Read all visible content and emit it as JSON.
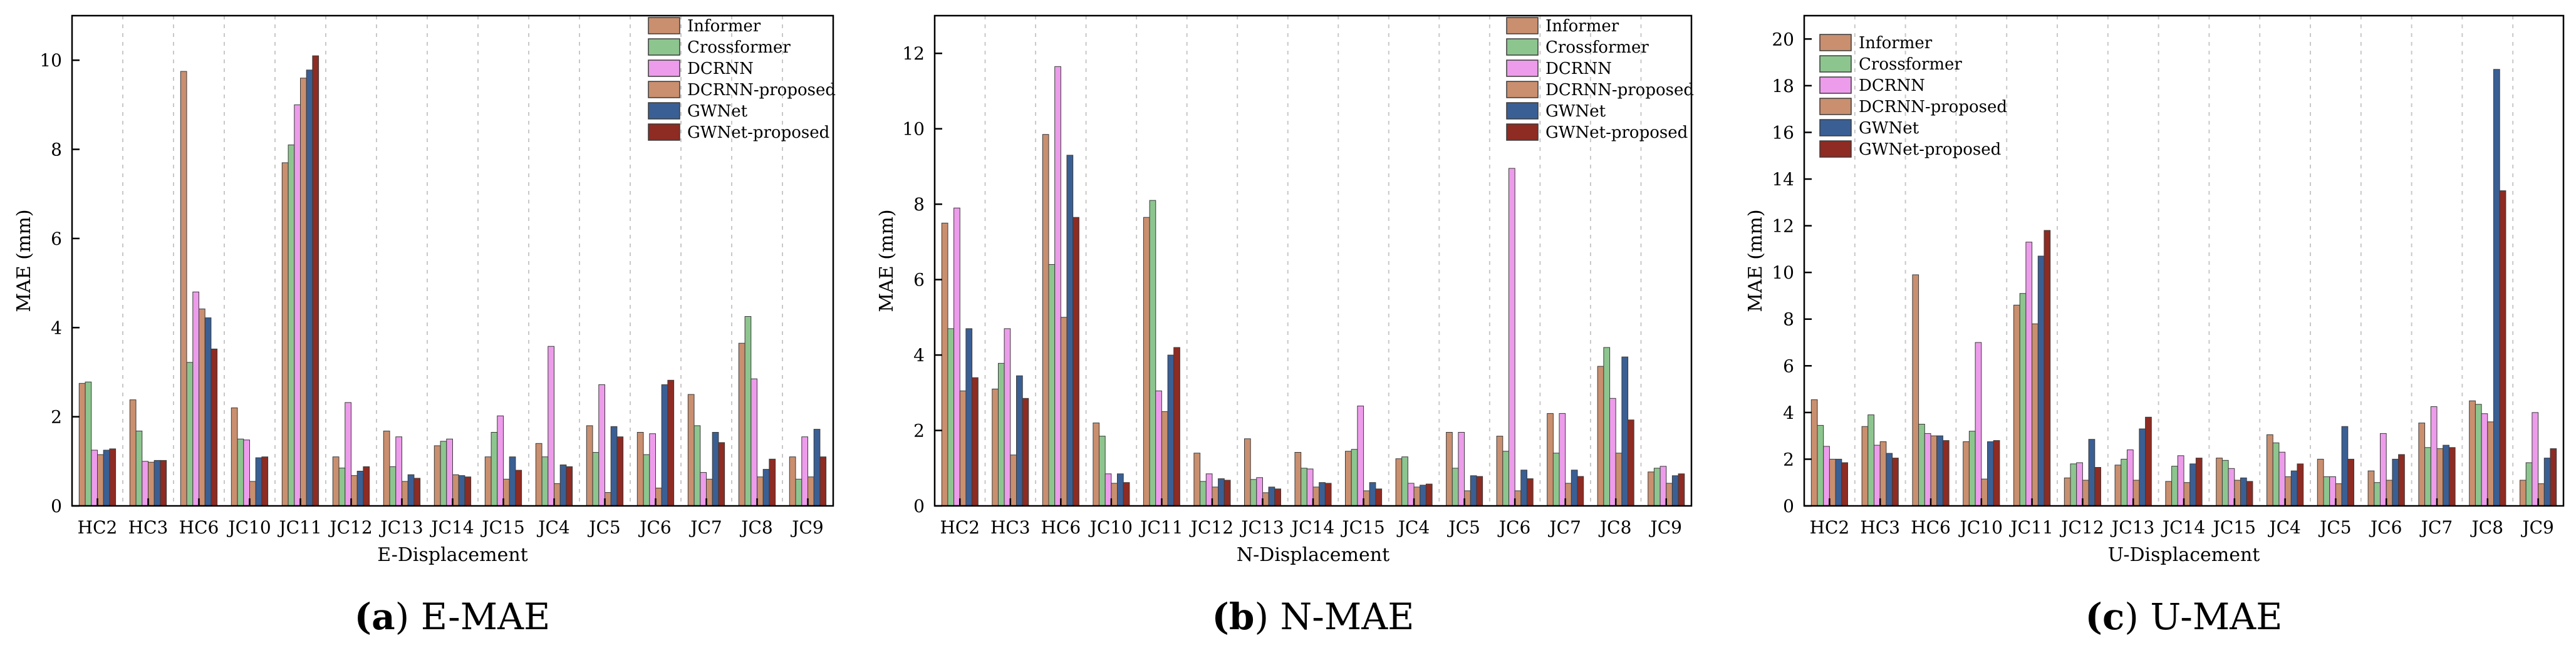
{
  "legend_colors": {
    "Informer": "#C98F6F",
    "Crossformer": "#8DC58F",
    "DCRNN": "#ED9CEB",
    "DCRNN-proposed": "#C98F6F",
    "GWNet": "#3A5F94",
    "GWNet-proposed": "#8E2B22"
  },
  "chart_data": [
    {
      "type": "bar",
      "caption_label": "(a)",
      "caption_text": "E-MAE",
      "xlabel": "E-Displacement",
      "ylabel": "MAE (mm)",
      "ylim": [
        0,
        11
      ],
      "yticks": [
        0,
        2,
        4,
        6,
        8,
        10
      ],
      "grid": "vertical dashed",
      "legend_position": "top-right",
      "categories": [
        "HC2",
        "HC3",
        "HC6",
        "JC10",
        "JC11",
        "JC12",
        "JC13",
        "JC14",
        "JC15",
        "JC4",
        "JC5",
        "JC6",
        "JC7",
        "JC8",
        "JC9"
      ],
      "series": [
        {
          "name": "Informer",
          "values": [
            2.75,
            2.38,
            9.75,
            2.2,
            7.7,
            1.1,
            1.68,
            1.35,
            1.1,
            1.4,
            1.8,
            1.65,
            2.5,
            3.65,
            1.1
          ]
        },
        {
          "name": "Crossformer",
          "values": [
            2.78,
            1.68,
            3.22,
            1.5,
            8.1,
            0.85,
            0.88,
            1.45,
            1.65,
            1.1,
            1.2,
            1.15,
            1.8,
            4.25,
            0.6
          ]
        },
        {
          "name": "DCRNN",
          "values": [
            1.25,
            1.0,
            4.8,
            1.48,
            9.0,
            2.32,
            1.55,
            1.5,
            2.02,
            3.58,
            2.72,
            1.62,
            0.75,
            2.85,
            1.55
          ]
        },
        {
          "name": "DCRNN-proposed",
          "values": [
            1.15,
            0.98,
            4.42,
            0.55,
            9.6,
            0.68,
            0.55,
            0.7,
            0.6,
            0.5,
            0.3,
            0.4,
            0.6,
            0.65,
            0.65
          ]
        },
        {
          "name": "GWNet",
          "values": [
            1.25,
            1.02,
            4.22,
            1.08,
            9.78,
            0.78,
            0.7,
            0.68,
            1.1,
            0.92,
            1.78,
            2.72,
            1.65,
            0.82,
            1.72
          ]
        },
        {
          "name": "GWNet-proposed",
          "values": [
            1.28,
            1.02,
            3.52,
            1.1,
            10.1,
            0.88,
            0.62,
            0.65,
            0.8,
            0.88,
            1.55,
            2.82,
            1.42,
            1.05,
            1.1
          ]
        }
      ]
    },
    {
      "type": "bar",
      "caption_label": "(b)",
      "caption_text": "N-MAE",
      "xlabel": "N-Displacement",
      "ylabel": "MAE (mm)",
      "ylim": [
        0,
        13
      ],
      "yticks": [
        0,
        2,
        4,
        6,
        8,
        10,
        12
      ],
      "grid": "vertical dashed",
      "legend_position": "top-right",
      "categories": [
        "HC2",
        "HC3",
        "HC6",
        "JC10",
        "JC11",
        "JC12",
        "JC13",
        "JC14",
        "JC15",
        "JC4",
        "JC5",
        "JC6",
        "JC7",
        "JC8",
        "JC9"
      ],
      "series": [
        {
          "name": "Informer",
          "values": [
            7.5,
            3.1,
            9.85,
            2.2,
            7.65,
            1.4,
            1.78,
            1.42,
            1.45,
            1.25,
            1.95,
            1.85,
            2.45,
            3.7,
            0.9
          ]
        },
        {
          "name": "Crossformer",
          "values": [
            4.7,
            3.78,
            6.4,
            1.85,
            8.1,
            0.65,
            0.7,
            1.0,
            1.5,
            1.3,
            1.0,
            1.45,
            1.4,
            4.2,
            1.0
          ]
        },
        {
          "name": "DCRNN",
          "values": [
            7.9,
            4.7,
            11.65,
            0.85,
            3.05,
            0.85,
            0.75,
            0.98,
            2.65,
            0.6,
            1.95,
            8.95,
            2.45,
            2.85,
            1.05
          ]
        },
        {
          "name": "DCRNN-proposed",
          "values": [
            3.05,
            1.35,
            5.0,
            0.6,
            2.5,
            0.5,
            0.35,
            0.5,
            0.4,
            0.5,
            0.4,
            0.4,
            0.6,
            1.4,
            0.6
          ]
        },
        {
          "name": "GWNet",
          "values": [
            4.7,
            3.45,
            9.3,
            0.85,
            4.0,
            0.72,
            0.5,
            0.62,
            0.62,
            0.55,
            0.8,
            0.95,
            0.95,
            3.95,
            0.8
          ]
        },
        {
          "name": "GWNet-proposed",
          "values": [
            3.4,
            2.85,
            7.65,
            0.62,
            4.2,
            0.68,
            0.45,
            0.6,
            0.45,
            0.58,
            0.78,
            0.72,
            0.78,
            2.28,
            0.85
          ]
        }
      ]
    },
    {
      "type": "bar",
      "caption_label": "(c)",
      "caption_text": "U-MAE",
      "xlabel": "U-Displacement",
      "ylabel": "MAE (mm)",
      "ylim": [
        0,
        21
      ],
      "yticks": [
        0,
        2,
        4,
        6,
        8,
        10,
        12,
        14,
        16,
        18,
        20
      ],
      "grid": "vertical dashed",
      "legend_position": "top-left",
      "categories": [
        "HC2",
        "HC3",
        "HC6",
        "JC10",
        "JC11",
        "JC12",
        "JC13",
        "JC14",
        "JC15",
        "JC4",
        "JC5",
        "JC6",
        "JC7",
        "JC8",
        "JC9"
      ],
      "series": [
        {
          "name": "Informer",
          "values": [
            4.55,
            3.4,
            9.9,
            2.75,
            8.6,
            1.2,
            1.75,
            1.05,
            2.05,
            3.05,
            2.0,
            1.5,
            3.55,
            4.5,
            1.1
          ]
        },
        {
          "name": "Crossformer",
          "values": [
            3.45,
            3.9,
            3.5,
            3.2,
            9.1,
            1.8,
            2.0,
            1.7,
            1.95,
            2.7,
            1.25,
            1.0,
            2.5,
            4.35,
            1.85
          ]
        },
        {
          "name": "DCRNN",
          "values": [
            2.55,
            2.6,
            3.1,
            7.0,
            11.3,
            1.85,
            2.4,
            2.15,
            1.6,
            2.3,
            1.25,
            3.1,
            4.25,
            3.95,
            4.0
          ]
        },
        {
          "name": "DCRNN-proposed",
          "values": [
            2.0,
            2.75,
            3.0,
            1.15,
            7.8,
            1.1,
            1.1,
            1.0,
            1.1,
            1.25,
            0.95,
            1.1,
            2.45,
            3.6,
            0.95
          ]
        },
        {
          "name": "GWNet",
          "values": [
            2.0,
            2.25,
            3.0,
            2.75,
            10.7,
            2.85,
            3.3,
            1.8,
            1.2,
            1.5,
            3.4,
            2.0,
            2.6,
            18.7,
            2.05
          ]
        },
        {
          "name": "GWNet-proposed",
          "values": [
            1.85,
            2.05,
            2.8,
            2.8,
            11.8,
            1.65,
            3.8,
            2.05,
            1.05,
            1.8,
            2.0,
            2.2,
            2.5,
            13.5,
            2.45
          ]
        }
      ]
    }
  ]
}
